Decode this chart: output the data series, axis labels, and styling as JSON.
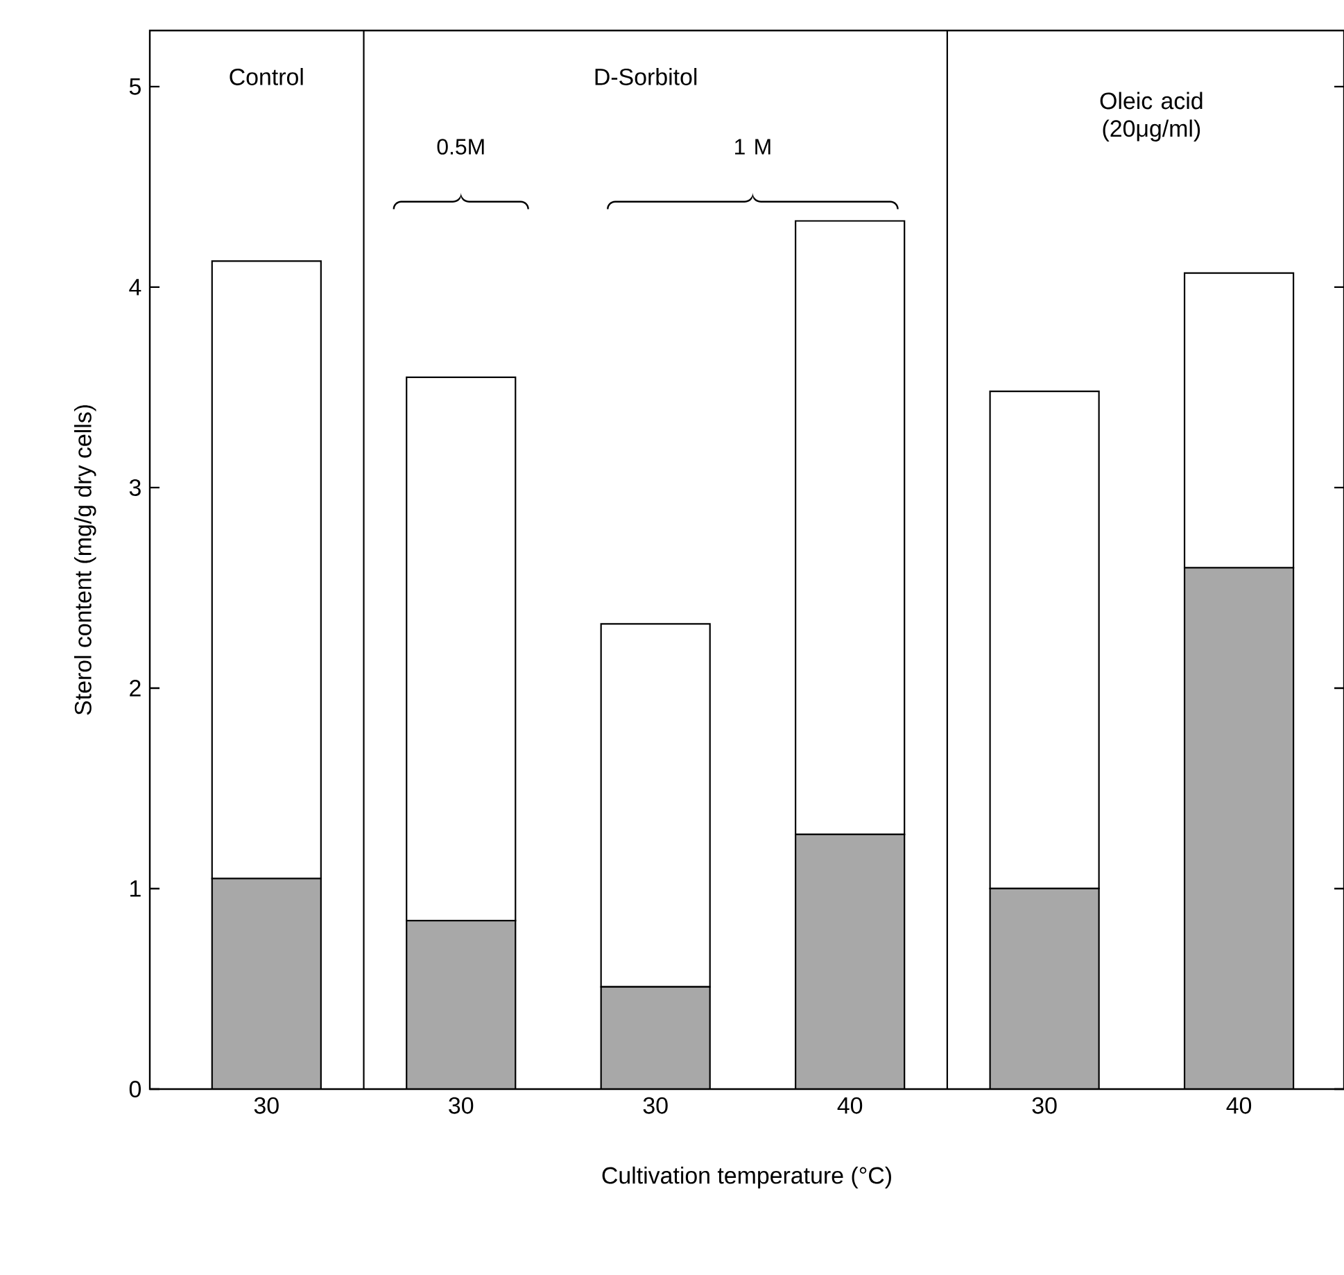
{
  "chart_data": {
    "type": "bar",
    "stacked": true,
    "xlabel": "Cultivation temperature (°C)",
    "ylabel": "Sterol content (mg/g dry cells)",
    "categories": [
      "30",
      "30",
      "30",
      "40",
      "30",
      "40"
    ],
    "series": [
      {
        "color": "#a8a8a8",
        "values": [
          1.05,
          0.84,
          0.51,
          1.27,
          1.0,
          2.6
        ]
      },
      {
        "color": "#ffffff",
        "values": [
          3.08,
          2.71,
          1.81,
          3.06,
          2.48,
          1.47
        ]
      }
    ],
    "ylim": [
      0,
      5.28
    ],
    "yticks": [
      0,
      1,
      2,
      3,
      4,
      5
    ],
    "grid": false,
    "annotations": [
      "Control",
      "D-Sorbitol",
      "0.5M",
      "1 M",
      "Oleic acid (20μg/ml)"
    ]
  }
}
